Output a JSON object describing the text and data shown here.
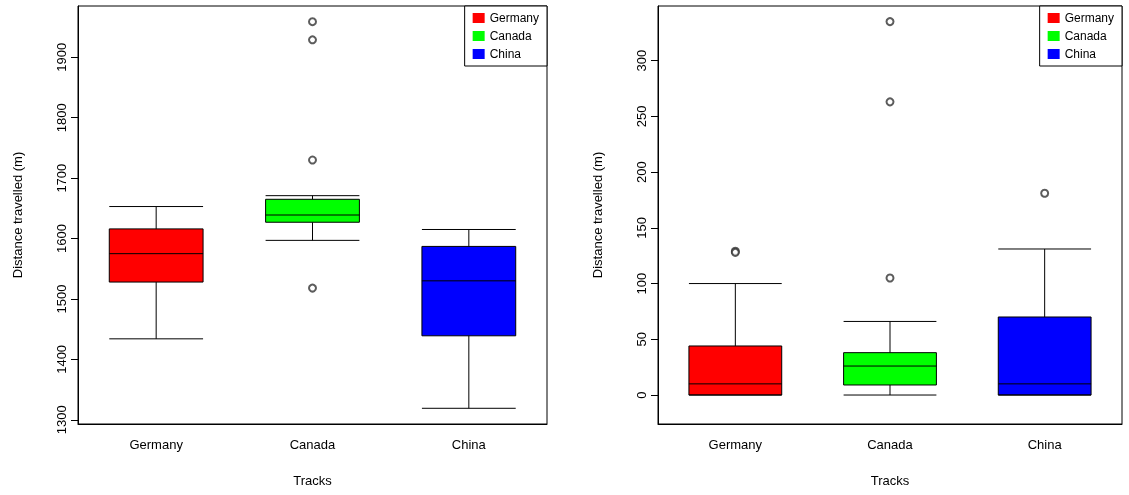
{
  "chart_data": [
    {
      "type": "box",
      "xlabel": "Tracks",
      "ylabel": "Distance travelled (m)",
      "categories": [
        "Germany",
        "Canada",
        "China"
      ],
      "series": [
        {
          "name": "Germany",
          "color": "#ff0000",
          "boxes": [
            {
              "low": 1434,
              "q1": 1528,
              "median": 1575,
              "q3": 1616,
              "high": 1653
            },
            null,
            null
          ]
        },
        {
          "name": "Canada",
          "color": "#00ff00",
          "boxes": [
            null,
            {
              "low": 1597,
              "q1": 1627,
              "median": 1639,
              "q3": 1665,
              "high": 1671,
              "outliers": [
                1959,
                1929,
                1730,
                1518
              ]
            },
            null
          ]
        },
        {
          "name": "China",
          "color": "#0000ff",
          "boxes": [
            null,
            null,
            {
              "low": 1319,
              "q1": 1439,
              "median": 1530,
              "q3": 1587,
              "high": 1615
            }
          ]
        }
      ],
      "ylim": [
        1293,
        1985
      ],
      "yticks": [
        1300,
        1400,
        1500,
        1600,
        1700,
        1800,
        1900
      ],
      "legend": "top right",
      "grid": false
    },
    {
      "type": "box",
      "xlabel": "Tracks",
      "ylabel": "Distance travelled (m)",
      "categories": [
        "Germany",
        "Canada",
        "China"
      ],
      "series": [
        {
          "name": "Germany",
          "color": "#ff0000",
          "boxes": [
            {
              "low": 0,
              "q1": 0,
              "median": 10,
              "q3": 44,
              "high": 100,
              "outliers": [
                129,
                128
              ]
            },
            null,
            null
          ]
        },
        {
          "name": "Canada",
          "color": "#00ff00",
          "boxes": [
            null,
            {
              "low": 0,
              "q1": 9,
              "median": 26,
              "q3": 38,
              "high": 66,
              "outliers": [
                335,
                263,
                105
              ]
            },
            null
          ]
        },
        {
          "name": "China",
          "color": "#0000ff",
          "boxes": [
            null,
            null,
            {
              "low": 0,
              "q1": 0,
              "median": 10,
              "q3": 70,
              "high": 131,
              "outliers": [
                181
              ]
            }
          ]
        }
      ],
      "ylim": [
        -26,
        349
      ],
      "yticks": [
        0,
        50,
        100,
        150,
        200,
        250,
        300
      ],
      "legend": "top right",
      "grid": false
    }
  ]
}
